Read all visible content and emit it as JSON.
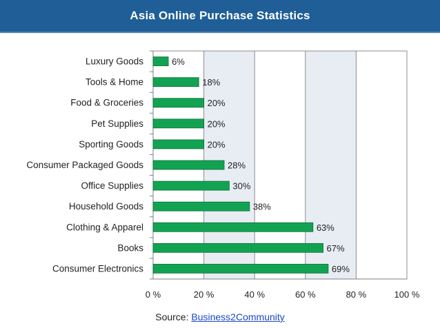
{
  "header": {
    "title": "Asia Online Purchase Statistics"
  },
  "source": {
    "label": "Source: ",
    "link_text": "Business2Community"
  },
  "colors": {
    "bar": "#12a352",
    "bar_border": "#0c6e36",
    "header_bg": "#1f5e97",
    "plot_bg": "#e8ecf3",
    "link": "#1a47c5"
  },
  "chart_data": {
    "type": "bar",
    "orientation": "horizontal",
    "title": "Asia Online Purchase Statistics",
    "categories": [
      "Luxury Goods",
      "Tools & Home",
      "Food & Groceries",
      "Pet Supplies",
      "Sporting Goods",
      "Consumer Packaged Goods",
      "Office Supplies",
      "Household Goods",
      "Clothing & Apparel",
      "Books",
      "Consumer Electronics"
    ],
    "values": [
      6,
      18,
      20,
      20,
      20,
      28,
      30,
      38,
      63,
      67,
      69
    ],
    "data_labels": [
      "6%",
      "18%",
      "20%",
      "20%",
      "20%",
      "28%",
      "30%",
      "38%",
      "63%",
      "67%",
      "69%"
    ],
    "xlim": [
      0,
      100
    ],
    "x_ticks": [
      0,
      20,
      40,
      60,
      80,
      100
    ],
    "x_tick_labels": [
      "0 %",
      "20 %",
      "40 %",
      "60 %",
      "80 %",
      "100 %"
    ],
    "grid": true,
    "legend": "none"
  }
}
